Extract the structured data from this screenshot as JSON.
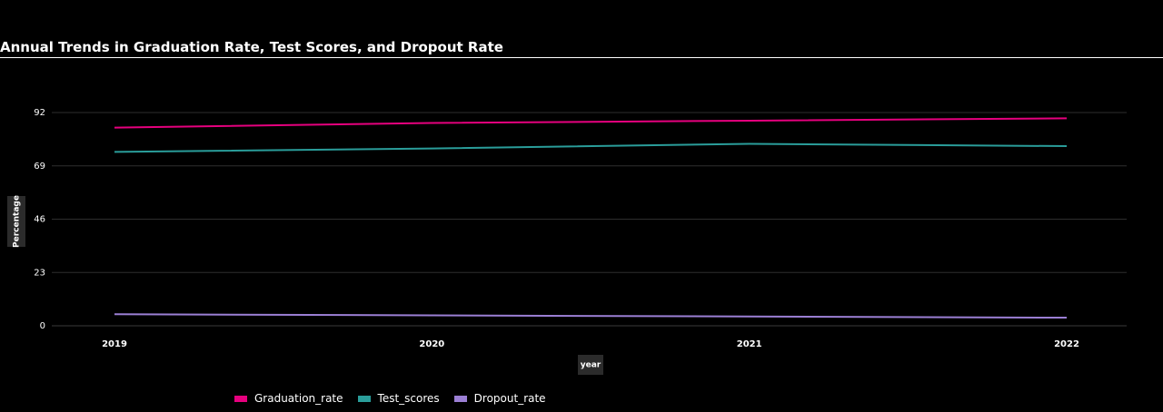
{
  "chart_data": {
    "type": "line",
    "title": "Annual Trends in Graduation Rate, Test Scores, and Dropout Rate",
    "xlabel": "year",
    "ylabel": "Percentage",
    "x": [
      "2019",
      "2020",
      "2021",
      "2022"
    ],
    "yticks": [
      "0",
      "23",
      "46",
      "69",
      "92"
    ],
    "ylim": [
      0,
      92
    ],
    "grid": true,
    "legend_position": "bottom-left",
    "series": [
      {
        "name": "Graduation_rate",
        "color": "#e6007e",
        "values": [
          85.5,
          87.5,
          88.5,
          89.5
        ]
      },
      {
        "name": "Test_scores",
        "color": "#2a9d9a",
        "values": [
          75,
          76.5,
          78.5,
          77.5
        ]
      },
      {
        "name": "Dropout_rate",
        "color": "#9b7fd4",
        "values": [
          5,
          4.5,
          4,
          3.5
        ]
      }
    ]
  }
}
